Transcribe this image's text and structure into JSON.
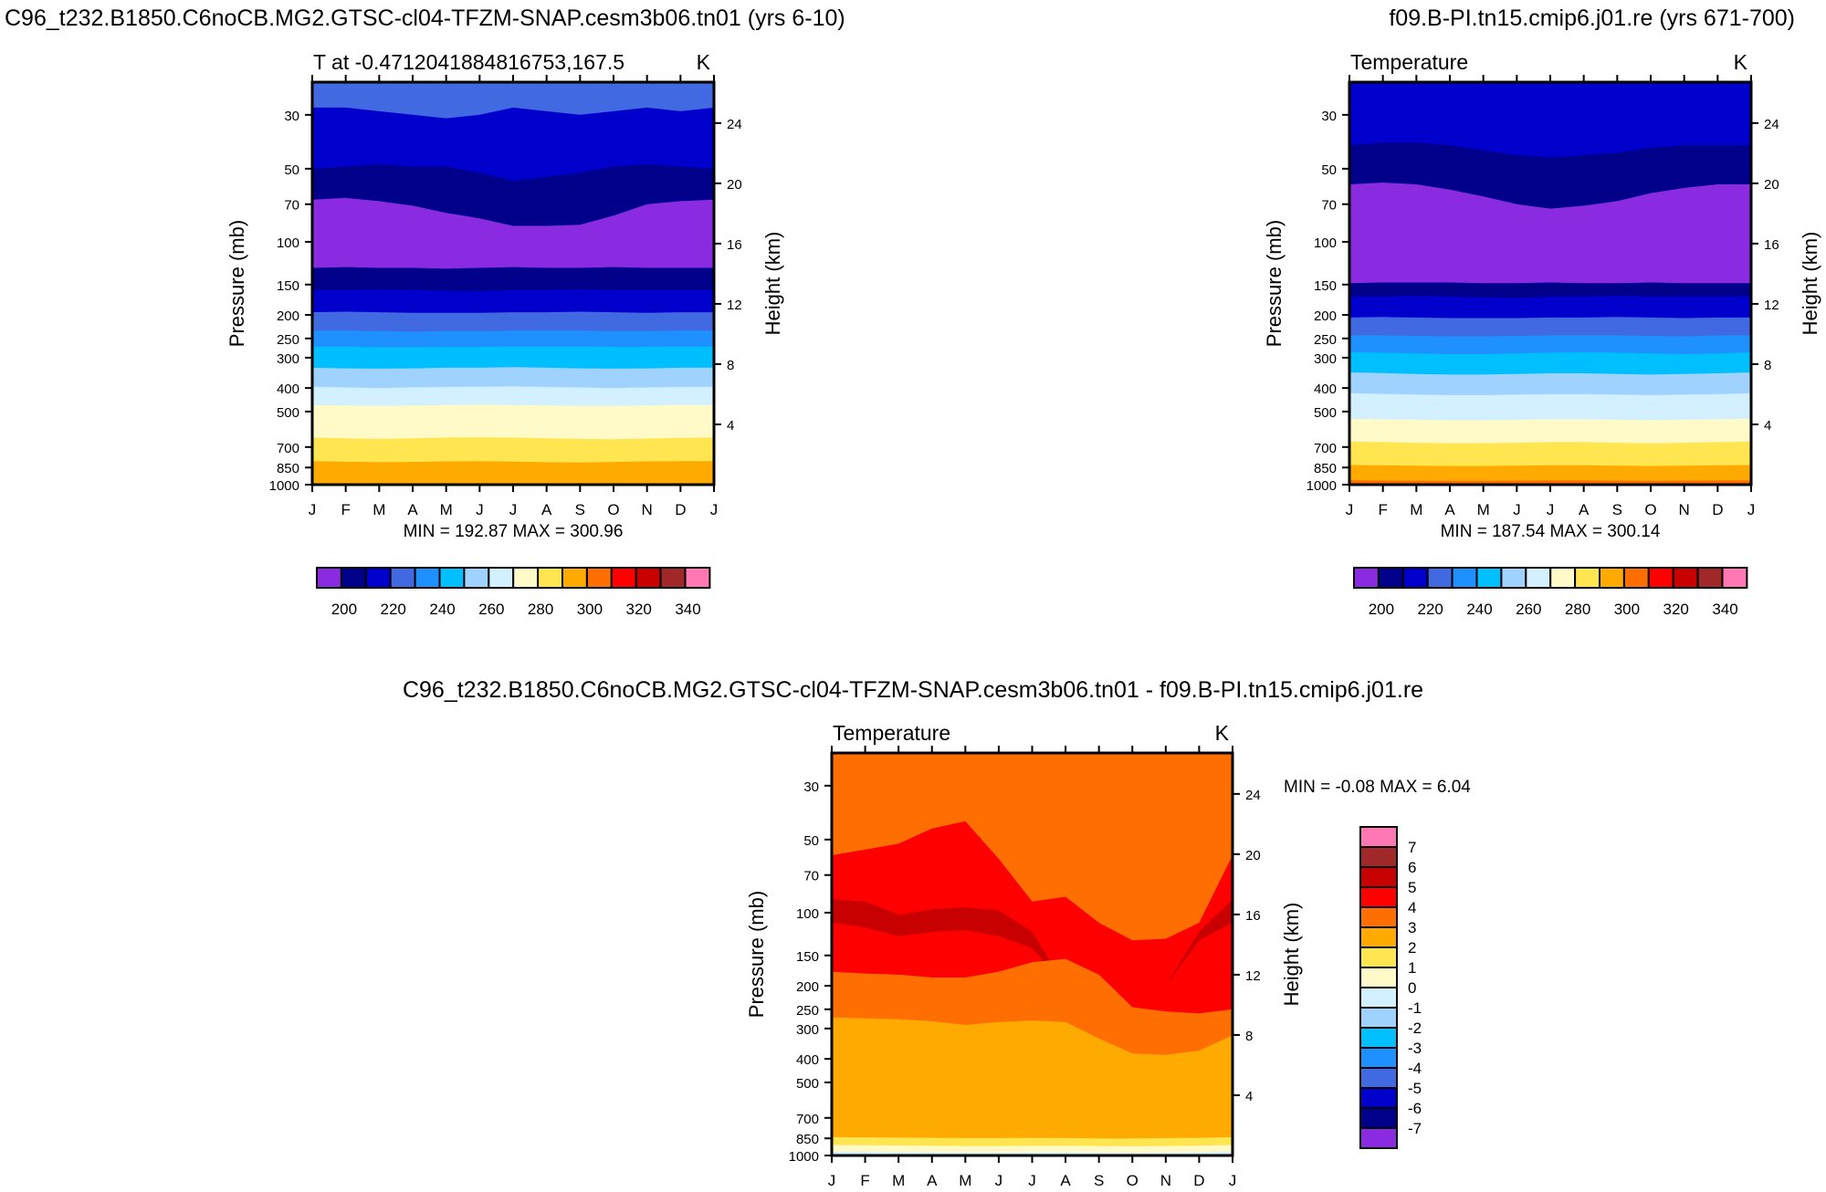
{
  "figure": {
    "left_title": "C96_t232.B1850.C6noCB.MG2.GTSC-cl04-TFZM-SNAP.cesm3b06.tn01 (yrs 6-10)",
    "right_title": "f09.B-PI.tn15.cmip6.j01.re (yrs 671-700)",
    "bottom_title": "C96_t232.B1850.C6noCB.MG2.GTSC-cl04-TFZM-SNAP.cesm3b06.tn01 - f09.B-PI.tn15.cmip6.j01.re"
  },
  "colors": {
    "abs_palette": [
      "#8a2be2",
      "#00008b",
      "#0000cd",
      "#4169e1",
      "#1e90ff",
      "#00bfff",
      "#a0d2ff",
      "#d2f0ff",
      "#fffac8",
      "#ffe650",
      "#ffaa00",
      "#ff6e00",
      "#ff0000",
      "#c80000",
      "#a02828",
      "#ff78b4"
    ],
    "diff_palette": [
      "#8a2be2",
      "#00008b",
      "#0000cd",
      "#4169e1",
      "#1e90ff",
      "#00bfff",
      "#a0d2ff",
      "#d2f0ff",
      "#fffac8",
      "#ffe650",
      "#ffaa00",
      "#ff6e00",
      "#ff0000",
      "#c80000",
      "#a02828",
      "#ff78b4"
    ]
  },
  "chart_data": [
    {
      "type": "contour",
      "panel": "left",
      "title": "T at -0.4712041884816753,167.5",
      "units": "K",
      "ylabel": "Pressure (mb)",
      "ylabel_right": "Height (km)",
      "x_ticks": [
        "J",
        "F",
        "M",
        "A",
        "M",
        "J",
        "J",
        "A",
        "S",
        "O",
        "N",
        "D",
        "J"
      ],
      "y_ticks": [
        30,
        50,
        70,
        100,
        150,
        200,
        250,
        300,
        400,
        500,
        700,
        850,
        1000
      ],
      "y_right_ticks": [
        24,
        20,
        16,
        12,
        8,
        4
      ],
      "ylim_mb": [
        1000,
        22
      ],
      "stats": "MIN = 192.87 MAX = 300.96",
      "colorbar_labels": [
        "200",
        "220",
        "240",
        "260",
        "280",
        "300",
        "320",
        "340"
      ],
      "contour_levels": [
        195,
        200,
        205,
        210,
        215,
        220,
        225,
        230,
        235,
        240,
        245,
        250,
        255,
        260,
        265,
        270,
        275,
        280,
        285,
        290,
        295,
        300,
        305,
        310,
        315,
        320,
        325,
        330,
        335,
        340,
        345
      ],
      "layers": [
        {
          "color": 3,
          "top_mb": 22,
          "months": [
            0,
            1,
            2,
            3,
            4,
            5,
            6,
            7,
            8,
            9,
            10,
            11,
            12
          ]
        },
        {
          "color": 2,
          "top_mb": [
            28,
            28,
            29,
            30,
            31,
            30,
            28,
            29,
            30,
            29,
            28,
            29,
            28
          ]
        },
        {
          "color": 1,
          "top_mb": [
            50,
            49,
            48,
            49,
            49,
            52,
            56,
            54,
            52,
            49,
            48,
            49,
            50
          ]
        },
        {
          "color": 0,
          "top_mb": [
            67,
            66,
            68,
            71,
            76,
            80,
            86,
            86,
            85,
            78,
            70,
            68,
            67
          ]
        },
        {
          "color": 1,
          "top_mb": [
            128,
            127,
            128,
            128,
            129,
            128,
            127,
            128,
            128,
            127,
            128,
            128,
            128
          ]
        },
        {
          "color": 2,
          "top_mb": [
            158,
            158,
            157,
            158,
            159,
            160,
            158,
            158,
            157,
            158,
            158,
            158,
            158
          ]
        },
        {
          "color": 3,
          "top_mb": [
            195,
            194,
            195,
            196,
            196,
            196,
            195,
            195,
            194,
            195,
            196,
            195,
            195
          ]
        },
        {
          "color": 4,
          "top_mb": [
            232,
            232,
            233,
            234,
            233,
            233,
            232,
            232,
            232,
            233,
            233,
            232,
            232
          ]
        },
        {
          "color": 5,
          "top_mb": [
            270,
            270,
            272,
            272,
            271,
            271,
            270,
            270,
            270,
            271,
            271,
            270,
            270
          ]
        },
        {
          "color": 6,
          "top_mb": [
            330,
            332,
            333,
            332,
            330,
            330,
            328,
            330,
            332,
            333,
            332,
            330,
            330
          ]
        },
        {
          "color": 7,
          "top_mb": [
            395,
            398,
            400,
            398,
            396,
            395,
            394,
            396,
            398,
            400,
            398,
            396,
            395
          ]
        },
        {
          "color": 8,
          "top_mb": [
            470,
            472,
            474,
            472,
            470,
            468,
            470,
            472,
            474,
            474,
            472,
            470,
            470
          ]
        },
        {
          "color": 9,
          "top_mb": [
            640,
            645,
            648,
            645,
            640,
            638,
            640,
            645,
            648,
            650,
            646,
            642,
            640
          ]
        },
        {
          "color": 10,
          "top_mb": [
            800,
            805,
            808,
            806,
            802,
            800,
            804,
            808,
            810,
            806,
            802,
            800,
            800
          ]
        }
      ]
    },
    {
      "type": "contour",
      "panel": "right",
      "title": "Temperature",
      "units": "K",
      "ylabel": "Pressure (mb)",
      "ylabel_right": "Height (km)",
      "x_ticks": [
        "J",
        "F",
        "M",
        "A",
        "M",
        "J",
        "J",
        "A",
        "S",
        "O",
        "N",
        "D",
        "J"
      ],
      "y_ticks": [
        30,
        50,
        70,
        100,
        150,
        200,
        250,
        300,
        400,
        500,
        700,
        850,
        1000
      ],
      "y_right_ticks": [
        24,
        20,
        16,
        12,
        8,
        4
      ],
      "ylim_mb": [
        1000,
        22
      ],
      "stats": "MIN = 187.54 MAX = 300.14",
      "colorbar_labels": [
        "200",
        "220",
        "240",
        "260",
        "280",
        "300",
        "320",
        "340"
      ],
      "layers": [
        {
          "color": 2,
          "top_mb": 22
        },
        {
          "color": 1,
          "top_mb": [
            40,
            39,
            39,
            40,
            42,
            44,
            45,
            44,
            43,
            41,
            40,
            40,
            40
          ]
        },
        {
          "color": 0,
          "top_mb": [
            58,
            57,
            58,
            61,
            65,
            70,
            73,
            71,
            68,
            63,
            60,
            58,
            58
          ]
        },
        {
          "color": 1,
          "top_mb": [
            148,
            147,
            147,
            147,
            148,
            148,
            147,
            148,
            148,
            147,
            148,
            148,
            148
          ]
        },
        {
          "color": 2,
          "top_mb": [
            168,
            168,
            167,
            168,
            169,
            170,
            168,
            168,
            167,
            168,
            168,
            168,
            168
          ]
        },
        {
          "color": 3,
          "top_mb": [
            205,
            204,
            205,
            206,
            206,
            206,
            205,
            205,
            204,
            205,
            206,
            205,
            205
          ]
        },
        {
          "color": 4,
          "top_mb": [
            243,
            243,
            244,
            245,
            245,
            244,
            243,
            243,
            243,
            244,
            245,
            243,
            243
          ]
        },
        {
          "color": 5,
          "top_mb": [
            285,
            286,
            288,
            290,
            290,
            288,
            286,
            285,
            286,
            288,
            290,
            288,
            285
          ]
        },
        {
          "color": 6,
          "top_mb": [
            345,
            347,
            350,
            352,
            352,
            350,
            348,
            348,
            350,
            352,
            350,
            348,
            345
          ]
        },
        {
          "color": 7,
          "top_mb": [
            420,
            423,
            426,
            428,
            428,
            426,
            424,
            424,
            426,
            428,
            426,
            424,
            420
          ]
        },
        {
          "color": 8,
          "top_mb": [
            535,
            538,
            540,
            543,
            543,
            540,
            538,
            538,
            540,
            543,
            540,
            538,
            535
          ]
        },
        {
          "color": 9,
          "top_mb": [
            665,
            668,
            672,
            675,
            675,
            672,
            668,
            668,
            672,
            675,
            672,
            668,
            665
          ]
        },
        {
          "color": 10,
          "top_mb": [
            830,
            832,
            835,
            838,
            838,
            835,
            832,
            832,
            835,
            838,
            835,
            832,
            830
          ]
        },
        {
          "color": 11,
          "top_mb": [
            960,
            962,
            964,
            965,
            965,
            963,
            961,
            961,
            963,
            965,
            963,
            961,
            960
          ]
        }
      ]
    },
    {
      "type": "contour",
      "panel": "bottom",
      "title": "Temperature",
      "units": "K",
      "ylabel": "Pressure (mb)",
      "ylabel_right": "Height (km)",
      "x_ticks": [
        "J",
        "F",
        "M",
        "A",
        "M",
        "J",
        "J",
        "A",
        "S",
        "O",
        "N",
        "D",
        "J"
      ],
      "y_ticks": [
        30,
        50,
        70,
        100,
        150,
        200,
        250,
        300,
        400,
        500,
        700,
        850,
        1000
      ],
      "y_right_ticks": [
        24,
        20,
        16,
        12,
        8,
        4
      ],
      "ylim_mb": [
        1000,
        22
      ],
      "stats": "MIN =  -0.08 MAX =   6.04",
      "colorbar_labels": [
        "7",
        "6",
        "5",
        "4",
        "3",
        "2",
        "1",
        "0",
        "-1",
        "-2",
        "-3",
        "-4",
        "-5",
        "-6",
        "-7"
      ],
      "contour_levels": [
        -7,
        -6,
        -5,
        -4,
        -3,
        -2,
        -1,
        0,
        1,
        2,
        3,
        4,
        5,
        6,
        7
      ],
      "layers": [
        {
          "color": 11,
          "top_mb": 22
        },
        {
          "color": 12,
          "top_mb": [
            58,
            55,
            52,
            45,
            42,
            60,
            90,
            86,
            110,
            130,
            128,
            110,
            58
          ]
        },
        {
          "color": 13,
          "top_mb": [
            88,
            90,
            102,
            97,
            95,
            98,
            120,
            200,
            200,
            200,
            200,
            120,
            88
          ]
        },
        {
          "color": 12,
          "top_mb": [
            110,
            115,
            125,
            120,
            118,
            125,
            140,
            200,
            200,
            200,
            200,
            130,
            110
          ]
        },
        {
          "color": 11,
          "top_mb": [
            175,
            178,
            180,
            185,
            185,
            175,
            160,
            155,
            180,
            245,
            255,
            260,
            250
          ]
        },
        {
          "color": 10,
          "top_mb": [
            270,
            272,
            275,
            280,
            290,
            282,
            278,
            282,
            330,
            380,
            385,
            370,
            320
          ]
        },
        {
          "color": 9,
          "top_mb": [
            840,
            842,
            845,
            846,
            848,
            848,
            846,
            848,
            850,
            850,
            848,
            846,
            840
          ]
        },
        {
          "color": 8,
          "top_mb": [
            905,
            908,
            910,
            912,
            914,
            914,
            912,
            912,
            914,
            916,
            914,
            912,
            905
          ]
        },
        {
          "color": 7,
          "top_mb": [
            965,
            968,
            970,
            972,
            974,
            974,
            972,
            972,
            974,
            976,
            974,
            972,
            965
          ]
        }
      ]
    }
  ]
}
